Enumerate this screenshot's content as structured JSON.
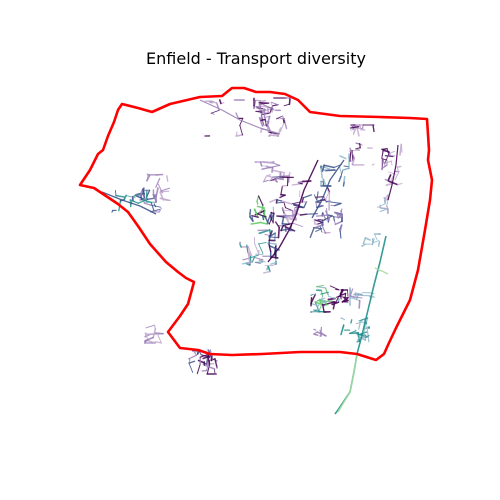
{
  "figure": {
    "title": "Enfield - Transport diversity"
  },
  "map": {
    "boundary_color": "#ff0000",
    "network_colors": [
      "#440154",
      "#3b528b",
      "#21918c",
      "#5ec962",
      "#9b7fb8",
      "#c2a9cf",
      "#8fb7c9",
      "#a6dba0"
    ],
    "axes_visible": false
  }
}
